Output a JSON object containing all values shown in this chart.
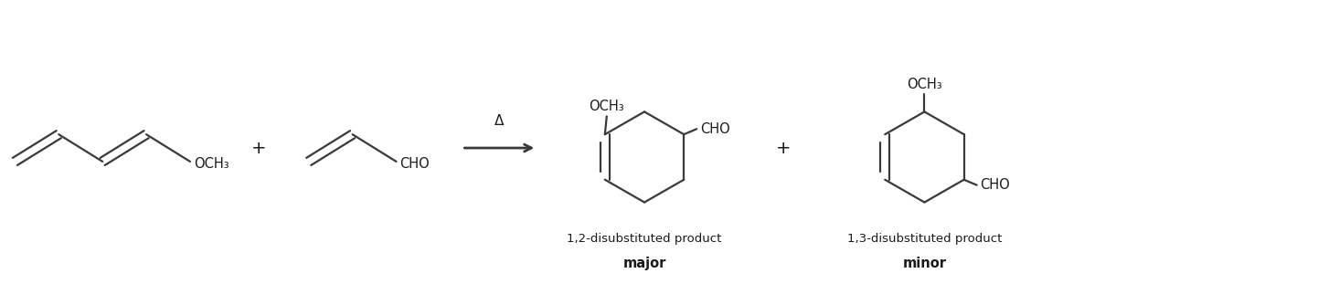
{
  "background_color": "#ffffff",
  "line_color": "#3a3a3a",
  "text_color": "#1a1a1a",
  "fig_width": 14.42,
  "fig_height": 3.34,
  "diene_label": "OCH₃",
  "dienophile_label": "CHO",
  "arrow_label": "Δ",
  "product1_top_label": "OCH₃",
  "product1_right_label": "CHO",
  "product1_bottom_label": "1,2-disubstituted product",
  "product1_bold_label": "major",
  "product2_top_label": "OCH₃",
  "product2_right_label": "CHO",
  "product2_bottom_label": "1,3-disubstituted product",
  "product2_bold_label": "minor",
  "label_fontsize": 10.5,
  "bold_fontsize": 11
}
